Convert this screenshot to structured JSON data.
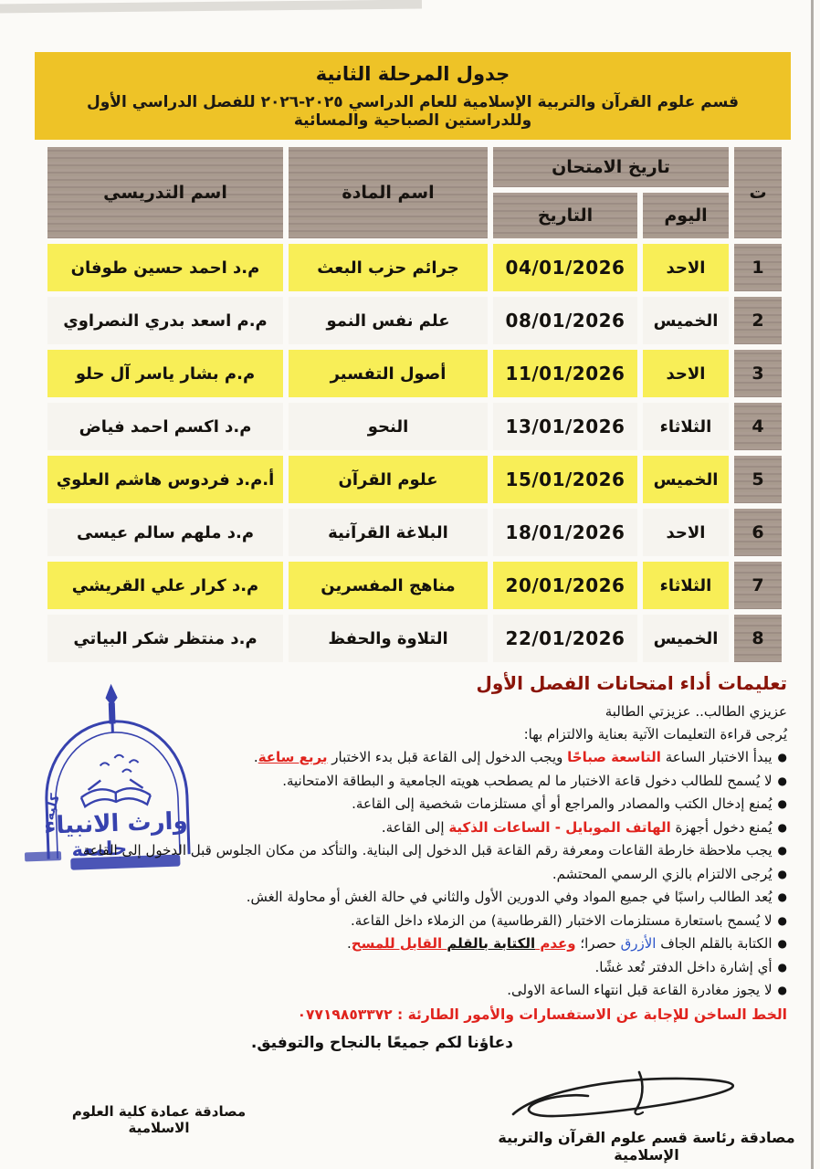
{
  "colors": {
    "banner_gold": "#eec327",
    "row_yellow": "#f8ee57",
    "header_gray": "#a4968c",
    "accent_red": "#e0231d",
    "accent_blue": "#2a52c9",
    "stamp_blue": "#2733a8"
  },
  "banner": {
    "title": "جدول المرحلة الثانية",
    "subtitle": "قسم علوم القرآن والتربية الإسلامية  للعام الدراسي ٢٠٢٥-٢٠٢٦ للفصل الدراسي الأول وللدراستين الصباحية والمسائية"
  },
  "table": {
    "col_no": "ت",
    "col_exam_date": "تاريخ الامتحان",
    "col_day": "اليوم",
    "col_date": "التاريخ",
    "col_subject": "اسم المادة",
    "col_instructor": "اسم التدريسي",
    "rows": [
      {
        "no": "1",
        "day": "الاحد",
        "date": "04/01/2026",
        "subject": "جرائم حزب البعث",
        "instructor": "م.د احمد حسين طوفان"
      },
      {
        "no": "2",
        "day": "الخميس",
        "date": "08/01/2026",
        "subject": "علم نفس النمو",
        "instructor": "م.م اسعد بدري النصراوي"
      },
      {
        "no": "3",
        "day": "الاحد",
        "date": "11/01/2026",
        "subject": "أصول التفسير",
        "instructor": "م.م بشار ياسر آل حلو"
      },
      {
        "no": "4",
        "day": "الثلاثاء",
        "date": "13/01/2026",
        "subject": "النحو",
        "instructor": "م.د اكسم احمد فياض"
      },
      {
        "no": "5",
        "day": "الخميس",
        "date": "15/01/2026",
        "subject": "علوم القرآن",
        "instructor": "أ.م.د فردوس هاشم العلوي"
      },
      {
        "no": "6",
        "day": "الاحد",
        "date": "18/01/2026",
        "subject": "البلاغة القرآنية",
        "instructor": "م.د ملهم سالم عيسى"
      },
      {
        "no": "7",
        "day": "الثلاثاء",
        "date": "20/01/2026",
        "subject": "مناهج المفسرين",
        "instructor": "م.د كرار علي القريشي"
      },
      {
        "no": "8",
        "day": "الخميس",
        "date": "22/01/2026",
        "subject": "التلاوة والحفظ",
        "instructor": "م.د منتظر شكر البياتي"
      }
    ]
  },
  "instructions": {
    "title": "تعليمات أداء امتحانات الفصل الأول",
    "greeting": "عزيزي الطالب.. عزيزتي الطالبة",
    "read_note": "يُرجى قراءة التعليمات الآتية بعناية والالتزام بها:",
    "b1_pre": "يبدأ الاختبار الساعة ",
    "b1_red": "التاسعة صباحًا",
    "b1_mid": " ويجب الدخول إلى القاعة قبل بدء الاختبار ",
    "b1_red_u": "بربع ساعة",
    "b1_end": ".",
    "b2": "لا يُسمح للطالب دخول قاعة الاختبار ما لم يصطحب هويته الجامعية و البطاقة الامتحانية.",
    "b3": "يُمنع إدخال الكتب والمصادر والمراجع أو أي مستلزمات شخصية إلى القاعة.",
    "b4_pre": "يُمنع دخول أجهزة ",
    "b4_red": "الهاتف الموبايل - الساعات الذكية",
    "b4_end": " إلى القاعة.",
    "b5": "يجب ملاحظة خارطة القاعات ومعرفة رقم القاعة قبل الدخول إلى البناية. والتأكد من مكان الجلوس قبل الدخول إلى القاعة",
    "b6": "يُرجى الالتزام بالزي الرسمي المحتشم.",
    "b7": "يُعد الطالب راسبًا في جميع المواد وفي الدورين الأول والثاني في حالة الغش أو محاولة الغش.",
    "b8": "لا يُسمح باستعارة مستلزمات الاختبار (القرطاسية) من الزملاء داخل القاعة.",
    "b9_pre": "الكتابة بالقلم الجاف ",
    "b9_blue": "الأزرق",
    "b9_mid": " حصرا؛ ",
    "b9_red1": "وعدم ",
    "b9_black_u": "الكتابة بالقلم",
    "b9_red2": " القابل للمسح",
    "b9_end": ".",
    "b10": "أي إشارة داخل الدفتر تُعد غشًا.",
    "b11": "لا يجوز مغادرة القاعة قبل انتهاء الساعة الاولى.",
    "hotline": "الخط الساخن للإجابة عن الاستفسارات والأمور الطارئة : ٠٧٧١٩٨٥٣٣٧٢"
  },
  "closing": {
    "prayer": "دعاؤنا لكم جميعًا بالنجاح والتوفيق."
  },
  "footer": {
    "right_approval": "مصادقة رئاسة قسم علوم القرآن والتربية الإسلامية",
    "left_approval": "مصادقة عمادة كلية العلوم الاسلامية"
  },
  "stamp": {
    "arc_text": "كلية العلوم الاسلامية",
    "main_text": "وارث الانبياء",
    "sub_text": "جامعة"
  }
}
